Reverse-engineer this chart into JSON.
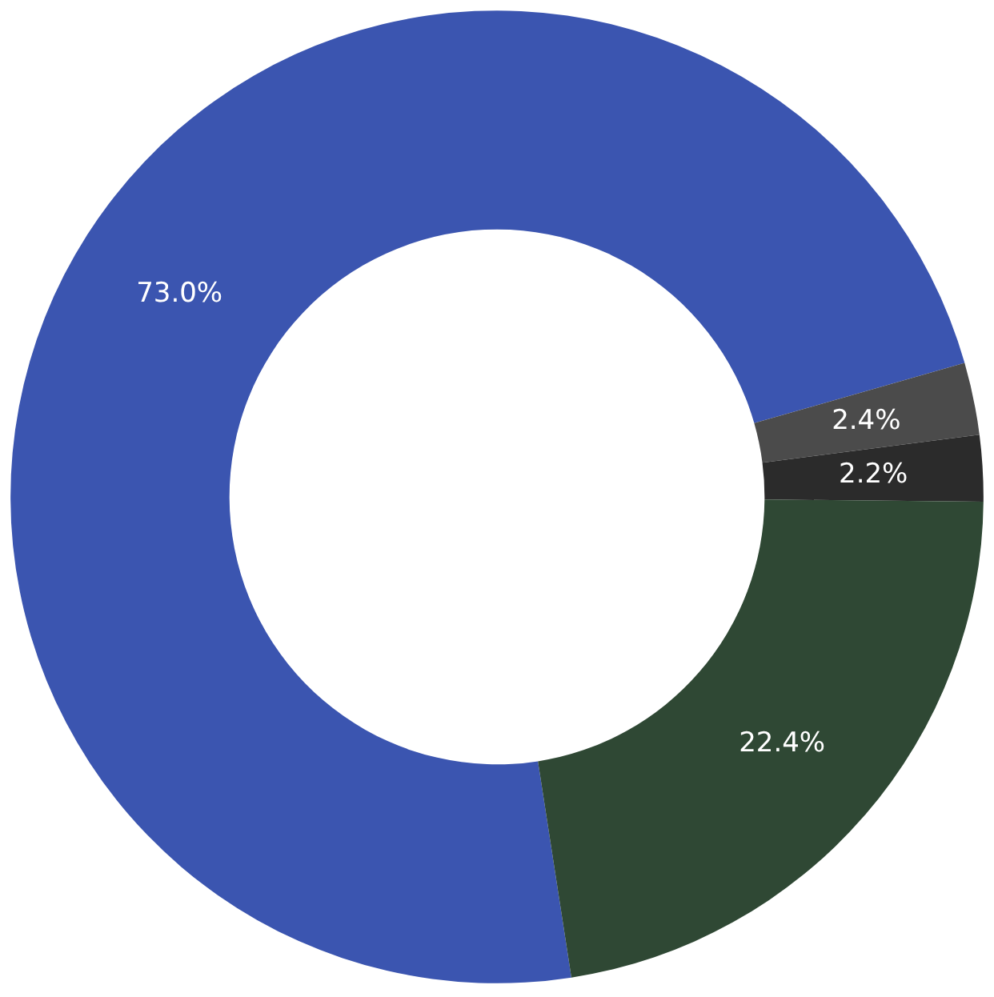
{
  "chart_data": {
    "type": "donut",
    "categories": [
      null,
      null,
      null,
      null
    ],
    "values": [
      73.0,
      2.4,
      2.2,
      22.4
    ],
    "value_labels": [
      "73.0%",
      "2.4%",
      "2.2%",
      "22.4%"
    ],
    "colors": [
      "#3b55b0",
      "#4b4b4b",
      "#2b2b2b",
      "#2f4834"
    ]
  }
}
